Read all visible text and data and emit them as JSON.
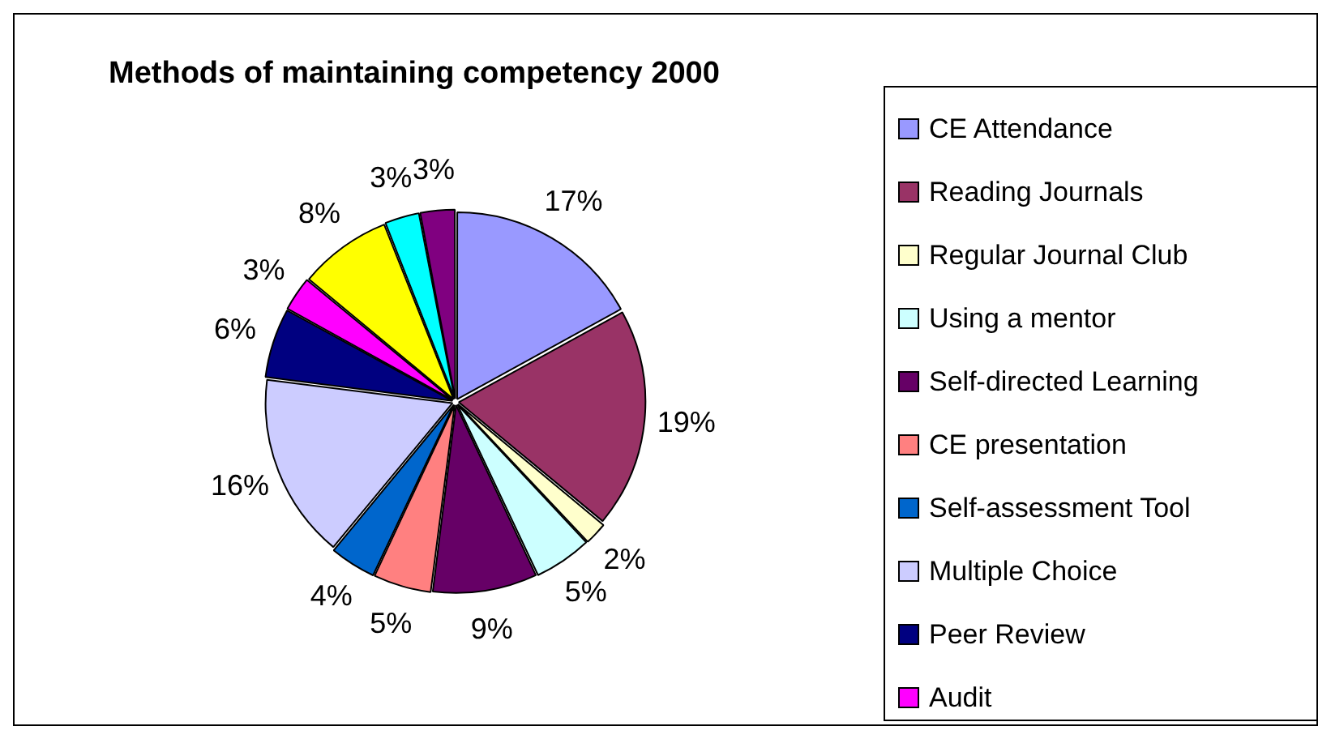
{
  "chart_data": {
    "type": "pie",
    "title": "Methods of maintaining competency 2000",
    "categories": [
      "CE Attendance",
      "Reading Journals",
      "Regular Journal Club",
      "Using a mentor",
      "Self-directed Learning",
      "CE presentation",
      "Self-assessment Tool",
      "Multiple Choice",
      "Peer Review",
      "Audit",
      null,
      null,
      null
    ],
    "values": [
      17,
      19,
      2,
      5,
      9,
      5,
      4,
      16,
      6,
      3,
      8,
      3,
      3
    ],
    "colors": [
      "#9999ff",
      "#993366",
      "#ffffcc",
      "#ccffff",
      "#660066",
      "#ff8080",
      "#0066cc",
      "#ccccff",
      "#000080",
      "#ff00ff",
      "#ffff00",
      "#00ffff",
      "#800080"
    ],
    "value_labels": [
      "17%",
      "19%",
      "2%",
      "5%",
      "9%",
      "5%",
      "4%",
      "16%",
      "6%",
      "3%",
      "8%",
      "3%",
      "3%"
    ],
    "legend": "right"
  }
}
